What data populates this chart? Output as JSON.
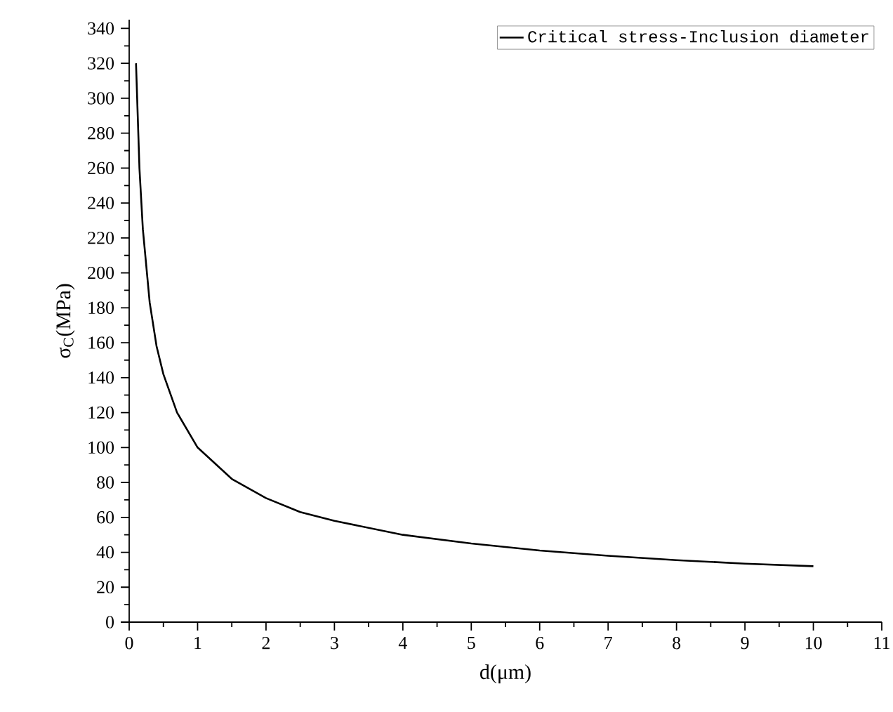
{
  "chart_data": {
    "type": "line",
    "xlabel": "d(μm)",
    "ylabel": "σ$_{C}$(MPa)",
    "xlim": [
      0,
      11
    ],
    "xticks": [
      0,
      1,
      2,
      3,
      4,
      5,
      6,
      7,
      8,
      9,
      10,
      11
    ],
    "ylim": [
      0,
      345
    ],
    "yticks": [
      0,
      20,
      40,
      60,
      80,
      100,
      120,
      140,
      160,
      180,
      200,
      220,
      240,
      260,
      280,
      300,
      320,
      340
    ],
    "grid": false,
    "legend": "top right",
    "marker": "none",
    "line_style": "solid",
    "series": [
      {
        "name": "Critical stress-Inclusion diameter",
        "color": "#000000",
        "x": [
          0.1,
          0.15,
          0.2,
          0.3,
          0.4,
          0.5,
          0.7,
          1,
          1.5,
          2,
          2.5,
          3,
          4,
          5,
          6,
          7,
          8,
          9,
          10
        ],
        "values": [
          320,
          260,
          225,
          183,
          158,
          142,
          120,
          100,
          82,
          71,
          63,
          58,
          50,
          45,
          41,
          38,
          35.5,
          33.5,
          32
        ]
      }
    ]
  }
}
